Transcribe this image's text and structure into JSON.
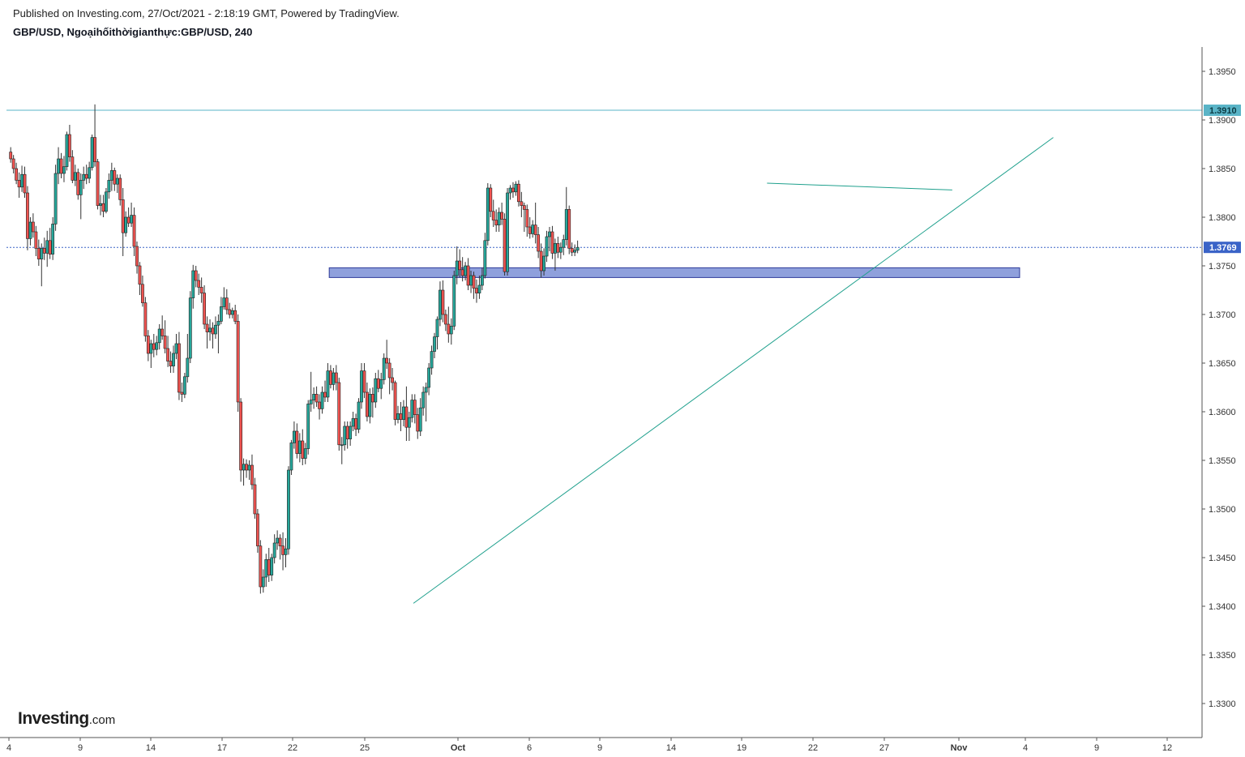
{
  "header": {
    "published": "Published on Investing.com, 27/Oct/2021 - 2:18:19 GMT, Powered by TradingView.",
    "title": "GBP/USD, Ngoạihốithờigianthực:GBP/USD, 240"
  },
  "logo": {
    "brand": "Investing",
    "suffix": ".com"
  },
  "colors": {
    "up": "#26a69a",
    "down": "#ef5350",
    "wick": "#333333",
    "trendline": "#1fa08d",
    "resistance": "#5ab4c7",
    "current": "#3a63c7",
    "zone_fill": "#7b8fd6",
    "zone_border": "#2f3b9a",
    "axis": "#555555"
  },
  "chart_data": {
    "type": "candlestick",
    "symbol": "GBP/USD",
    "interval": "240",
    "x_axis": {
      "ticks": [
        "4",
        "9",
        "14",
        "17",
        "22",
        "25",
        "Oct",
        "6",
        "9",
        "14",
        "19",
        "22",
        "27",
        "Nov",
        "4",
        "9",
        "12"
      ],
      "bold_ticks": [
        "Oct",
        "Nov"
      ]
    },
    "y_axis": {
      "range": [
        1.3265,
        1.3975
      ],
      "ticks": [
        "1.3950",
        "1.3900",
        "1.3850",
        "1.3800",
        "1.3750",
        "1.3700",
        "1.3650",
        "1.3600",
        "1.3550",
        "1.3500",
        "1.3450",
        "1.3400",
        "1.3350",
        "1.3300"
      ]
    },
    "price_labels": [
      {
        "label": "1.3910",
        "value": 1.391,
        "style": "resistance"
      },
      {
        "label": "1.3769",
        "value": 1.3769,
        "style": "current"
      }
    ],
    "horizontal_lines": [
      {
        "value": 1.391,
        "style": "resistance"
      },
      {
        "value": 1.3769,
        "style": "current",
        "dashed": true
      }
    ],
    "zone": {
      "from_date": "2021-09-23",
      "to_date": "2021-11-03",
      "low": 1.3738,
      "high": 1.3748
    },
    "trendlines": [
      {
        "from": {
          "date": "2021-09-28",
          "value": 1.3403
        },
        "to": {
          "date": "2021-11-05",
          "value": 1.3882
        }
      },
      {
        "from": {
          "date": "2021-10-19",
          "value": 1.3835
        },
        "to": {
          "date": "2021-10-30",
          "value": 1.3828
        }
      }
    ],
    "x_range": [
      "2021-09-03T20:00",
      "2021-11-13T20:00"
    ],
    "candle_start": "2021-09-04T00:00",
    "candle_step_hours": 4,
    "candles": [
      [
        1.3867,
        1.3872,
        1.3856,
        1.386
      ],
      [
        1.386,
        1.3864,
        1.3845,
        1.385
      ],
      [
        1.385,
        1.3856,
        1.3834,
        1.3838
      ],
      [
        1.3838,
        1.3846,
        1.382,
        1.3831
      ],
      [
        1.3831,
        1.3853,
        1.3826,
        1.3844
      ],
      [
        1.3844,
        1.3852,
        1.382,
        1.3825
      ],
      [
        1.3825,
        1.3832,
        1.3766,
        1.3778
      ],
      [
        1.3778,
        1.38,
        1.3771,
        1.3795
      ],
      [
        1.3795,
        1.3804,
        1.3779,
        1.3785
      ],
      [
        1.3785,
        1.3791,
        1.376,
        1.3768
      ],
      [
        1.3768,
        1.3777,
        1.375,
        1.3757
      ],
      [
        1.3757,
        1.3773,
        1.3729,
        1.3768
      ],
      [
        1.3768,
        1.3779,
        1.3756,
        1.3763
      ],
      [
        1.3763,
        1.3786,
        1.3749,
        1.3776
      ],
      [
        1.3776,
        1.3789,
        1.3757,
        1.3762
      ],
      [
        1.3762,
        1.38,
        1.3756,
        1.3793
      ],
      [
        1.3793,
        1.3854,
        1.3786,
        1.3845
      ],
      [
        1.3845,
        1.3872,
        1.3834,
        1.386
      ],
      [
        1.386,
        1.3866,
        1.384,
        1.3845
      ],
      [
        1.3845,
        1.3863,
        1.3836,
        1.3852
      ],
      [
        1.3852,
        1.3888,
        1.3848,
        1.3885
      ],
      [
        1.3885,
        1.3895,
        1.3857,
        1.3862
      ],
      [
        1.3862,
        1.3869,
        1.3835,
        1.3838
      ],
      [
        1.3838,
        1.3854,
        1.3832,
        1.3846
      ],
      [
        1.3846,
        1.385,
        1.3818,
        1.3823
      ],
      [
        1.3823,
        1.3845,
        1.3798,
        1.3838
      ],
      [
        1.3838,
        1.3852,
        1.3829,
        1.3844
      ],
      [
        1.3844,
        1.3854,
        1.3834,
        1.384
      ],
      [
        1.384,
        1.3857,
        1.3835,
        1.3851
      ],
      [
        1.3851,
        1.3885,
        1.3848,
        1.3882
      ],
      [
        1.3882,
        1.3916,
        1.3852,
        1.3857
      ],
      [
        1.3857,
        1.386,
        1.3808,
        1.3812
      ],
      [
        1.3812,
        1.3823,
        1.3802,
        1.3814
      ],
      [
        1.3814,
        1.3823,
        1.38,
        1.3806
      ],
      [
        1.3806,
        1.383,
        1.3804,
        1.3826
      ],
      [
        1.3826,
        1.3845,
        1.3819,
        1.3838
      ],
      [
        1.3838,
        1.3856,
        1.3827,
        1.3848
      ],
      [
        1.3848,
        1.3851,
        1.3827,
        1.3834
      ],
      [
        1.3834,
        1.3844,
        1.3825,
        1.384
      ],
      [
        1.384,
        1.3844,
        1.3812,
        1.3818
      ],
      [
        1.3818,
        1.383,
        1.376,
        1.3784
      ],
      [
        1.3784,
        1.3806,
        1.378,
        1.38
      ],
      [
        1.38,
        1.381,
        1.379,
        1.3794
      ],
      [
        1.3794,
        1.3815,
        1.379,
        1.3802
      ],
      [
        1.3802,
        1.381,
        1.376,
        1.377
      ],
      [
        1.377,
        1.3775,
        1.3742,
        1.375
      ],
      [
        1.375,
        1.3754,
        1.372,
        1.3731
      ],
      [
        1.3731,
        1.374,
        1.3708,
        1.3712
      ],
      [
        1.3712,
        1.3718,
        1.3672,
        1.3678
      ],
      [
        1.3678,
        1.3684,
        1.3652,
        1.366
      ],
      [
        1.366,
        1.3674,
        1.3645,
        1.367
      ],
      [
        1.367,
        1.368,
        1.3656,
        1.3664
      ],
      [
        1.3664,
        1.3678,
        1.3658,
        1.3671
      ],
      [
        1.3671,
        1.369,
        1.3664,
        1.3685
      ],
      [
        1.3685,
        1.3699,
        1.3674,
        1.3678
      ],
      [
        1.3678,
        1.3694,
        1.366,
        1.3665
      ],
      [
        1.3665,
        1.3678,
        1.3646,
        1.3652
      ],
      [
        1.3652,
        1.3662,
        1.364,
        1.3647
      ],
      [
        1.3647,
        1.3668,
        1.364,
        1.366
      ],
      [
        1.366,
        1.368,
        1.3654,
        1.367
      ],
      [
        1.367,
        1.3682,
        1.3612,
        1.362
      ],
      [
        1.362,
        1.363,
        1.361,
        1.3618
      ],
      [
        1.3618,
        1.364,
        1.3614,
        1.3636
      ],
      [
        1.3636,
        1.368,
        1.363,
        1.3655
      ],
      [
        1.3655,
        1.3724,
        1.365,
        1.3717
      ],
      [
        1.3717,
        1.3751,
        1.3706,
        1.3745
      ],
      [
        1.3745,
        1.375,
        1.3728,
        1.3735
      ],
      [
        1.3735,
        1.3742,
        1.372,
        1.3728
      ],
      [
        1.3728,
        1.3738,
        1.3712,
        1.3722
      ],
      [
        1.3722,
        1.373,
        1.3685,
        1.369
      ],
      [
        1.369,
        1.3698,
        1.3665,
        1.3682
      ],
      [
        1.3682,
        1.3695,
        1.3673,
        1.3686
      ],
      [
        1.3686,
        1.3692,
        1.3665,
        1.368
      ],
      [
        1.368,
        1.3698,
        1.3675,
        1.3689
      ],
      [
        1.3689,
        1.37,
        1.366,
        1.3693
      ],
      [
        1.3693,
        1.3718,
        1.369,
        1.3708
      ],
      [
        1.3708,
        1.3728,
        1.3705,
        1.3717
      ],
      [
        1.3717,
        1.3726,
        1.37,
        1.3705
      ],
      [
        1.3705,
        1.3712,
        1.3696,
        1.37
      ],
      [
        1.37,
        1.3707,
        1.3696,
        1.3704
      ],
      [
        1.3704,
        1.371,
        1.369,
        1.3693
      ],
      [
        1.3693,
        1.37,
        1.36,
        1.361
      ],
      [
        1.361,
        1.3614,
        1.3528,
        1.354
      ],
      [
        1.354,
        1.3552,
        1.3524,
        1.3546
      ],
      [
        1.3546,
        1.3551,
        1.3532,
        1.354
      ],
      [
        1.354,
        1.355,
        1.353,
        1.3545
      ],
      [
        1.3545,
        1.3556,
        1.352,
        1.3525
      ],
      [
        1.3525,
        1.3532,
        1.349,
        1.3495
      ],
      [
        1.3495,
        1.35,
        1.3455,
        1.3462
      ],
      [
        1.3462,
        1.3468,
        1.3413,
        1.342
      ],
      [
        1.342,
        1.3438,
        1.3414,
        1.343
      ],
      [
        1.343,
        1.3454,
        1.342,
        1.3448
      ],
      [
        1.3448,
        1.346,
        1.3425,
        1.3432
      ],
      [
        1.3432,
        1.3454,
        1.3426,
        1.345
      ],
      [
        1.345,
        1.3474,
        1.3444,
        1.3465
      ],
      [
        1.3465,
        1.3478,
        1.3458,
        1.347
      ],
      [
        1.347,
        1.3474,
        1.3448,
        1.3462
      ],
      [
        1.3462,
        1.3476,
        1.3437,
        1.3453
      ],
      [
        1.3453,
        1.347,
        1.344,
        1.3459
      ],
      [
        1.3459,
        1.3544,
        1.3453,
        1.354
      ],
      [
        1.354,
        1.3571,
        1.3535,
        1.3568
      ],
      [
        1.3568,
        1.359,
        1.3562,
        1.358
      ],
      [
        1.358,
        1.3588,
        1.3552,
        1.3557
      ],
      [
        1.3557,
        1.3578,
        1.3548,
        1.357
      ],
      [
        1.357,
        1.3582,
        1.3545,
        1.3552
      ],
      [
        1.3552,
        1.3568,
        1.3546,
        1.3562
      ],
      [
        1.3562,
        1.3612,
        1.3556,
        1.3608
      ],
      [
        1.3608,
        1.3641,
        1.36,
        1.3612
      ],
      [
        1.3612,
        1.3625,
        1.3603,
        1.3618
      ],
      [
        1.3618,
        1.3626,
        1.3605,
        1.361
      ],
      [
        1.361,
        1.3618,
        1.3592,
        1.3603
      ],
      [
        1.3603,
        1.3626,
        1.3598,
        1.362
      ],
      [
        1.362,
        1.3632,
        1.361,
        1.3615
      ],
      [
        1.3615,
        1.365,
        1.361,
        1.3642
      ],
      [
        1.3642,
        1.3648,
        1.3624,
        1.3628
      ],
      [
        1.3628,
        1.3645,
        1.3622,
        1.364
      ],
      [
        1.364,
        1.3648,
        1.3622,
        1.363
      ],
      [
        1.363,
        1.3635,
        1.356,
        1.3566
      ],
      [
        1.3566,
        1.3574,
        1.3546,
        1.3566
      ],
      [
        1.3566,
        1.359,
        1.356,
        1.3585
      ],
      [
        1.3585,
        1.359,
        1.3562,
        1.3572
      ],
      [
        1.3572,
        1.359,
        1.3565,
        1.3585
      ],
      [
        1.3585,
        1.36,
        1.358,
        1.3593
      ],
      [
        1.3593,
        1.3598,
        1.3575,
        1.3582
      ],
      [
        1.3582,
        1.3614,
        1.3578,
        1.361
      ],
      [
        1.361,
        1.365,
        1.3603,
        1.3642
      ],
      [
        1.3642,
        1.365,
        1.3614,
        1.362
      ],
      [
        1.362,
        1.363,
        1.359,
        1.3595
      ],
      [
        1.3595,
        1.3624,
        1.3588,
        1.3618
      ],
      [
        1.3618,
        1.3625,
        1.3594,
        1.361
      ],
      [
        1.361,
        1.364,
        1.3604,
        1.3634
      ],
      [
        1.3634,
        1.3643,
        1.362,
        1.3624
      ],
      [
        1.3624,
        1.364,
        1.3613,
        1.3633
      ],
      [
        1.3633,
        1.366,
        1.3628,
        1.3655
      ],
      [
        1.3655,
        1.3674,
        1.3644,
        1.365
      ],
      [
        1.365,
        1.3655,
        1.3618,
        1.3635
      ],
      [
        1.3635,
        1.3645,
        1.3622,
        1.363
      ],
      [
        1.363,
        1.3632,
        1.3586,
        1.3592
      ],
      [
        1.3592,
        1.3606,
        1.3588,
        1.3598
      ],
      [
        1.3598,
        1.361,
        1.358,
        1.3592
      ],
      [
        1.3592,
        1.3612,
        1.3585,
        1.3605
      ],
      [
        1.3605,
        1.3626,
        1.357,
        1.3584
      ],
      [
        1.3584,
        1.36,
        1.357,
        1.3594
      ],
      [
        1.3594,
        1.3618,
        1.3589,
        1.3612
      ],
      [
        1.3612,
        1.3618,
        1.3588,
        1.3597
      ],
      [
        1.3597,
        1.3604,
        1.3572,
        1.358
      ],
      [
        1.358,
        1.3614,
        1.3575,
        1.3604
      ],
      [
        1.3604,
        1.3626,
        1.3596,
        1.362
      ],
      [
        1.362,
        1.363,
        1.359,
        1.3625
      ],
      [
        1.3625,
        1.365,
        1.3617,
        1.3645
      ],
      [
        1.3645,
        1.3668,
        1.3638,
        1.3662
      ],
      [
        1.3662,
        1.3681,
        1.3655,
        1.3677
      ],
      [
        1.3677,
        1.3698,
        1.3664,
        1.3695
      ],
      [
        1.3695,
        1.3734,
        1.3688,
        1.3725
      ],
      [
        1.3725,
        1.3735,
        1.3692,
        1.37
      ],
      [
        1.37,
        1.3705,
        1.3683,
        1.369
      ],
      [
        1.369,
        1.3708,
        1.3671,
        1.368
      ],
      [
        1.368,
        1.3696,
        1.3669,
        1.3688
      ],
      [
        1.3688,
        1.3745,
        1.3684,
        1.374
      ],
      [
        1.374,
        1.377,
        1.3731,
        1.3755
      ],
      [
        1.3755,
        1.3767,
        1.3738,
        1.3746
      ],
      [
        1.3746,
        1.3759,
        1.3734,
        1.374
      ],
      [
        1.374,
        1.3754,
        1.3735,
        1.375
      ],
      [
        1.375,
        1.3758,
        1.3725,
        1.373
      ],
      [
        1.373,
        1.3745,
        1.3722,
        1.374
      ],
      [
        1.374,
        1.3744,
        1.3716,
        1.3727
      ],
      [
        1.3727,
        1.3736,
        1.3712,
        1.3722
      ],
      [
        1.3722,
        1.374,
        1.3716,
        1.373
      ],
      [
        1.373,
        1.3748,
        1.3725,
        1.374
      ],
      [
        1.374,
        1.3784,
        1.3737,
        1.3776
      ],
      [
        1.3776,
        1.3835,
        1.3771,
        1.383
      ],
      [
        1.383,
        1.3834,
        1.38,
        1.3806
      ],
      [
        1.3806,
        1.3818,
        1.379,
        1.3797
      ],
      [
        1.3797,
        1.3808,
        1.3785,
        1.3792
      ],
      [
        1.3792,
        1.381,
        1.3785,
        1.3805
      ],
      [
        1.3805,
        1.3815,
        1.3792,
        1.3798
      ],
      [
        1.3798,
        1.3804,
        1.374,
        1.3744
      ],
      [
        1.3744,
        1.383,
        1.374,
        1.3825
      ],
      [
        1.3825,
        1.3833,
        1.3818,
        1.383
      ],
      [
        1.383,
        1.3836,
        1.382,
        1.3826
      ],
      [
        1.3826,
        1.3837,
        1.3822,
        1.3834
      ],
      [
        1.3834,
        1.3838,
        1.3811,
        1.3816
      ],
      [
        1.3816,
        1.3826,
        1.38,
        1.3812
      ],
      [
        1.3812,
        1.3815,
        1.3785,
        1.3808
      ],
      [
        1.3808,
        1.3813,
        1.378,
        1.379
      ],
      [
        1.379,
        1.38,
        1.3778,
        1.3783
      ],
      [
        1.3783,
        1.3797,
        1.3779,
        1.3792
      ],
      [
        1.3792,
        1.3815,
        1.3773,
        1.3782
      ],
      [
        1.3782,
        1.379,
        1.3758,
        1.3765
      ],
      [
        1.3765,
        1.3773,
        1.3738,
        1.3745
      ],
      [
        1.3745,
        1.3768,
        1.374,
        1.376
      ],
      [
        1.376,
        1.3786,
        1.3754,
        1.378
      ],
      [
        1.378,
        1.379,
        1.3765,
        1.3785
      ],
      [
        1.3785,
        1.3791,
        1.3757,
        1.3763
      ],
      [
        1.3763,
        1.3778,
        1.3745,
        1.3773
      ],
      [
        1.3773,
        1.378,
        1.3758,
        1.3764
      ],
      [
        1.3764,
        1.3774,
        1.3757,
        1.3769
      ],
      [
        1.3769,
        1.3782,
        1.3761,
        1.3777
      ],
      [
        1.3777,
        1.3831,
        1.3771,
        1.3808
      ],
      [
        1.3808,
        1.3812,
        1.3762,
        1.3768
      ],
      [
        1.3768,
        1.3774,
        1.376,
        1.3764
      ],
      [
        1.3764,
        1.3772,
        1.376,
        1.3766
      ],
      [
        1.3766,
        1.3776,
        1.3763,
        1.3769
      ]
    ]
  }
}
